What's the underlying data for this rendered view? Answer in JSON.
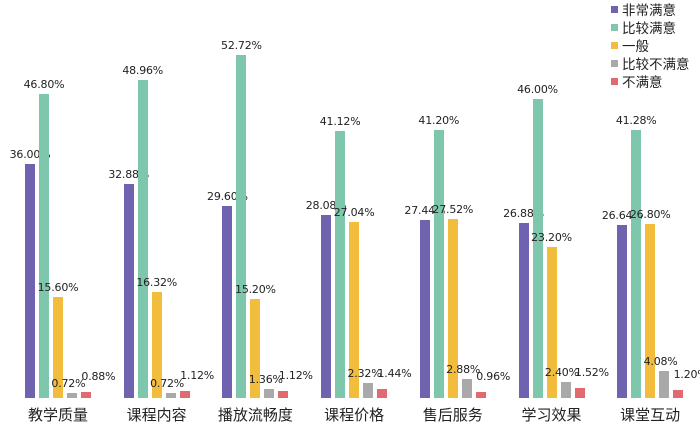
{
  "chart_data": {
    "type": "bar",
    "title": "",
    "xlabel": "",
    "ylabel": "",
    "ylim": [
      0,
      55
    ],
    "grid": false,
    "legend_position": "top-right",
    "categories": [
      "教学质量",
      "课程内容",
      "播放流畅度",
      "课程价格",
      "售后服务",
      "学习效果",
      "课堂互动"
    ],
    "series": [
      {
        "name": "非常满意",
        "color": "#6f62ae",
        "values": [
          36.0,
          32.88,
          29.6,
          28.08,
          27.44,
          26.88,
          26.64
        ],
        "labels": [
          "36.00%",
          "32.88%",
          "29.60%",
          "28.08%",
          "27.44%",
          "26.88%",
          "26.64%"
        ]
      },
      {
        "name": "比较满意",
        "color": "#7ec7ad",
        "values": [
          46.8,
          48.96,
          52.72,
          41.12,
          41.2,
          46.0,
          41.28
        ],
        "labels": [
          "46.80%",
          "48.96%",
          "52.72%",
          "41.12%",
          "41.20%",
          "46.00%",
          "41.28%"
        ]
      },
      {
        "name": "一般",
        "color": "#f2bd3d",
        "values": [
          15.6,
          16.32,
          15.2,
          27.04,
          27.52,
          23.2,
          26.8
        ],
        "labels": [
          "15.60%",
          "16.32%",
          "15.20%",
          "27.04%",
          "27.52%",
          "23.20%",
          "26.80%"
        ]
      },
      {
        "name": "比较不满意",
        "color": "#a9a9a9",
        "values": [
          0.72,
          0.72,
          1.36,
          2.32,
          2.88,
          2.4,
          4.08
        ],
        "labels": [
          "0.72%",
          "0.72%",
          "1.36%",
          "2.32%",
          "2.88%",
          "2.40%",
          "4.08%"
        ]
      },
      {
        "name": "不满意",
        "color": "#e2696f",
        "values": [
          0.88,
          1.12,
          1.12,
          1.44,
          0.96,
          1.52,
          1.2
        ],
        "labels": [
          "0.88%",
          "1.12%",
          "1.12%",
          "1.44%",
          "0.96%",
          "1.52%",
          "1.20%"
        ]
      }
    ]
  },
  "legend": {
    "items": [
      {
        "label": "非常满意",
        "color": "#6f62ae"
      },
      {
        "label": "比较满意",
        "color": "#7ec7ad"
      },
      {
        "label": "一般",
        "color": "#f2bd3d"
      },
      {
        "label": "比较不满意",
        "color": "#a9a9a9"
      },
      {
        "label": "不满意",
        "color": "#e2696f"
      }
    ]
  }
}
